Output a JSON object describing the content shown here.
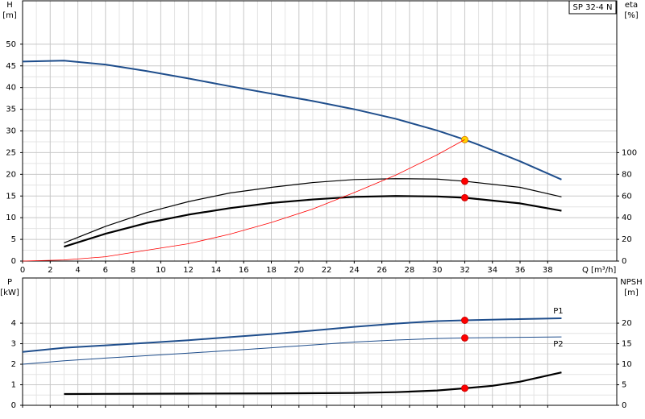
{
  "chart_data": [
    {
      "type": "line",
      "annotation": "SP 32-4 N",
      "ylabel": [
        "H",
        "[m]"
      ],
      "y2label": [
        "eta",
        "[%]"
      ],
      "xlabel": "Q [m³/h]",
      "xlim": [
        0,
        43
      ],
      "xticks": [
        0,
        2,
        4,
        6,
        8,
        10,
        12,
        14,
        16,
        18,
        20,
        22,
        24,
        26,
        28,
        30,
        32,
        34,
        36,
        38
      ],
      "ylim": [
        0,
        60
      ],
      "yticks": [
        0,
        5,
        10,
        15,
        20,
        25,
        30,
        35,
        40,
        45,
        50
      ],
      "y2lim": [
        0,
        240
      ],
      "y2ticks": [
        0,
        20,
        40,
        60,
        80,
        100
      ],
      "grid": true,
      "xtick_labels": true,
      "duty_point_q": 32,
      "series": [
        {
          "color": "#1f4e8c",
          "width": 2,
          "marker_color": "#ffd700",
          "x": [
            0,
            3,
            6,
            9,
            12,
            15,
            18,
            21,
            24,
            27,
            30,
            32,
            33,
            36,
            39
          ],
          "values": [
            46,
            46.2,
            45.3,
            43.8,
            42.1,
            40.3,
            38.6,
            36.9,
            35,
            32.8,
            30.1,
            28,
            26.8,
            23,
            18.8
          ]
        },
        {
          "color": "#000000",
          "width": 1.2,
          "axis": "y2",
          "marker_color": "#ff0000",
          "x": [
            3,
            6,
            9,
            12,
            15,
            18,
            21,
            24,
            27,
            30,
            32,
            36,
            39
          ],
          "values": [
            16.8,
            32,
            44.8,
            54.8,
            62.8,
            68,
            72.4,
            75.2,
            76,
            75.6,
            73.6,
            68,
            59.2
          ]
        },
        {
          "color": "#000000",
          "width": 2.2,
          "axis": "y2",
          "marker_color": "#ff0000",
          "x": [
            3,
            6,
            9,
            12,
            15,
            18,
            21,
            24,
            27,
            30,
            32,
            36,
            39
          ],
          "values": [
            13.2,
            25.2,
            35.2,
            42.8,
            48.8,
            53.6,
            56.8,
            59.2,
            60,
            59.6,
            58.4,
            53.2,
            46.4
          ]
        },
        {
          "color": "#ff0000",
          "width": 0.8,
          "x": [
            0,
            3,
            6,
            9,
            12,
            15,
            18,
            21,
            24,
            27,
            30,
            32
          ],
          "values": [
            0,
            0.25,
            1,
            2.5,
            4,
            6.2,
            8.9,
            12,
            15.8,
            19.8,
            24.5,
            28
          ]
        }
      ]
    },
    {
      "type": "line",
      "ylabel": [
        "P",
        "[kW]"
      ],
      "y2label": [
        "NPSH",
        "[m]"
      ],
      "xlim": [
        0,
        43
      ],
      "xticks": [
        0,
        2,
        4,
        6,
        8,
        10,
        12,
        14,
        16,
        18,
        20,
        22,
        24,
        26,
        28,
        30,
        32,
        34,
        36,
        38
      ],
      "ylim": [
        0,
        6.2
      ],
      "yticks": [
        0,
        1,
        2,
        3,
        4
      ],
      "y2lim": [
        0,
        31
      ],
      "y2ticks": [
        0,
        5,
        10,
        15,
        20
      ],
      "grid": true,
      "xtick_labels": false,
      "duty_point_q": 32,
      "series": [
        {
          "name": "P1",
          "name_side": "above",
          "color": "#1f4e8c",
          "width": 2,
          "marker_color": "#ff0000",
          "x": [
            0,
            3,
            6,
            9,
            12,
            15,
            18,
            21,
            24,
            27,
            30,
            32,
            36,
            39
          ],
          "values": [
            2.6,
            2.8,
            2.92,
            3.04,
            3.17,
            3.32,
            3.47,
            3.64,
            3.82,
            3.98,
            4.1,
            4.14,
            4.2,
            4.24
          ]
        },
        {
          "name": "P2",
          "name_side": "below",
          "color": "#1f4e8c",
          "width": 1,
          "marker_color": "#ff0000",
          "x": [
            0,
            3,
            6,
            9,
            12,
            15,
            18,
            21,
            24,
            27,
            30,
            32,
            36,
            39
          ],
          "values": [
            2,
            2.17,
            2.3,
            2.42,
            2.54,
            2.67,
            2.8,
            2.94,
            3.08,
            3.18,
            3.25,
            3.28,
            3.31,
            3.33
          ]
        },
        {
          "color": "#000000",
          "width": 2.2,
          "axis": "y2",
          "marker_color": "#ff0000",
          "x": [
            3,
            12,
            18,
            24,
            27,
            30,
            32,
            34,
            36,
            39
          ],
          "values": [
            2.75,
            2.85,
            2.9,
            3,
            3.2,
            3.6,
            4.15,
            4.75,
            5.75,
            8
          ]
        }
      ]
    }
  ]
}
